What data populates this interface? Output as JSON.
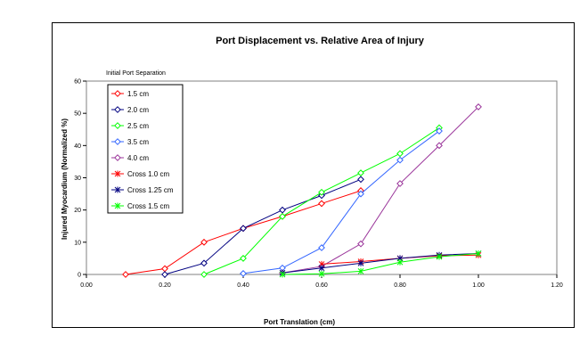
{
  "chart_data": {
    "type": "line",
    "title": "Port Displacement vs. Relative Area of Injury",
    "xlabel": "Port Translation (cm)",
    "ylabel": "Injured Myocardium (Normalized %)",
    "xlim": [
      0,
      1.2
    ],
    "ylim": [
      0,
      60
    ],
    "x_ticks": [
      "0.00",
      "0.20",
      "0.40",
      "0.60",
      "0.80",
      "1.00",
      "1.20"
    ],
    "y_ticks": [
      "0",
      "10",
      "20",
      "30",
      "40",
      "50",
      "60"
    ],
    "grid": false,
    "legend_title": "Initial Port Separation",
    "legend_position": "top-left",
    "series": [
      {
        "name": "1.5 cm",
        "color": "#ff0000",
        "marker": "diamond",
        "x": [
          0.1,
          0.2,
          0.3,
          0.4,
          0.5,
          0.6,
          0.7
        ],
        "y": [
          0,
          1.8,
          10,
          14.3,
          18,
          22,
          26
        ]
      },
      {
        "name": "2.0 cm",
        "color": "#000080",
        "marker": "diamond",
        "x": [
          0.2,
          0.3,
          0.4,
          0.5,
          0.6,
          0.7
        ],
        "y": [
          0,
          3.5,
          14.3,
          20,
          24.5,
          29.5
        ]
      },
      {
        "name": "2.5 cm",
        "color": "#00ff00",
        "marker": "diamond",
        "x": [
          0.3,
          0.4,
          0.5,
          0.6,
          0.7,
          0.8,
          0.9
        ],
        "y": [
          0,
          5,
          18,
          25.5,
          31.5,
          37.5,
          45.5
        ]
      },
      {
        "name": "3.5 cm",
        "color": "#3366ff",
        "marker": "diamond",
        "x": [
          0.4,
          0.5,
          0.6,
          0.7,
          0.8,
          0.9
        ],
        "y": [
          0.3,
          2,
          8.3,
          25,
          35.5,
          44.5
        ]
      },
      {
        "name": "4.0 cm",
        "color": "#993399",
        "marker": "diamond",
        "x": [
          0.5,
          0.6,
          0.7,
          0.8,
          0.9,
          1.0
        ],
        "y": [
          0.5,
          2.5,
          9.5,
          28.2,
          40,
          52
        ]
      },
      {
        "name": "Cross 1.0 cm",
        "color": "#ff0000",
        "marker": "star",
        "x": [
          0.6,
          0.7,
          0.8,
          0.9,
          1.0
        ],
        "y": [
          3.2,
          4,
          5,
          5.8,
          6
        ]
      },
      {
        "name": "Cross 1.25 cm",
        "color": "#000080",
        "marker": "star",
        "x": [
          0.5,
          0.6,
          0.7,
          0.8,
          0.9,
          1.0
        ],
        "y": [
          0.5,
          2,
          3.5,
          5,
          6,
          6.5
        ]
      },
      {
        "name": "Cross 1.5 cm",
        "color": "#00ff00",
        "marker": "star",
        "x": [
          0.5,
          0.6,
          0.7,
          0.8,
          0.9,
          1.0
        ],
        "y": [
          0,
          0.2,
          1,
          3.8,
          5.5,
          6.5
        ]
      }
    ]
  }
}
